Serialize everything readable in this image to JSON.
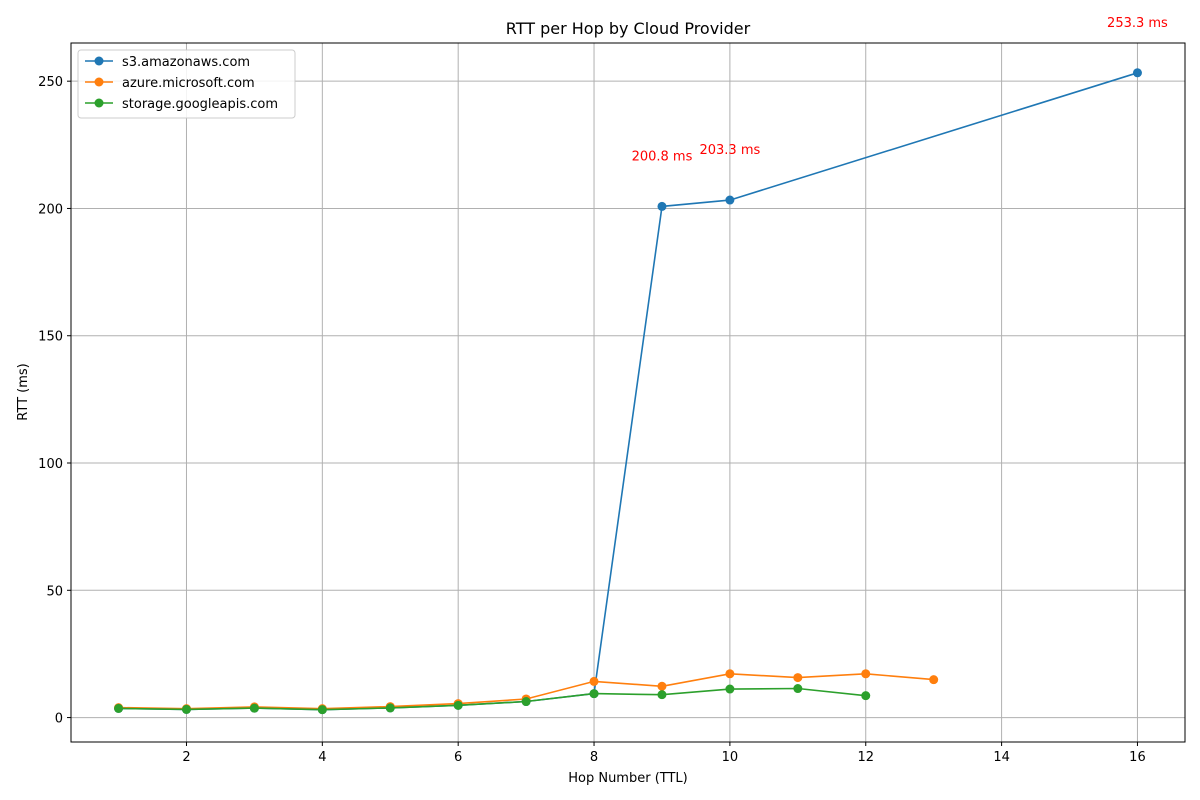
{
  "chart_data": {
    "type": "line",
    "title": "RTT per Hop by Cloud Provider",
    "xlabel": "Hop Number (TTL)",
    "ylabel": "RTT (ms)",
    "xlim": [
      0.3,
      16.7
    ],
    "ylim": [
      -9.6,
      265
    ],
    "xticks": [
      2,
      4,
      6,
      8,
      10,
      12,
      14,
      16
    ],
    "yticks": [
      0,
      50,
      100,
      150,
      200,
      250
    ],
    "grid": true,
    "legend_position": "top-left",
    "series": [
      {
        "name": "s3.amazonaws.com",
        "color": "#1f77b4",
        "x": [
          1,
          2,
          3,
          4,
          5,
          6,
          7,
          8,
          9,
          10,
          16
        ],
        "y": [
          3.6,
          3.2,
          3.7,
          3.1,
          3.8,
          4.8,
          6.3,
          9.4,
          200.8,
          203.3,
          253.3
        ]
      },
      {
        "name": "azure.microsoft.com",
        "color": "#ff7f0e",
        "x": [
          1,
          2,
          3,
          4,
          5,
          6,
          7,
          8,
          9,
          10,
          11,
          12,
          13
        ],
        "y": [
          3.9,
          3.5,
          4.2,
          3.5,
          4.3,
          5.5,
          7.3,
          14.2,
          12.3,
          17.2,
          15.7,
          17.2,
          14.9
        ]
      },
      {
        "name": "storage.googleapis.com",
        "color": "#2ca02c",
        "x": [
          1,
          2,
          3,
          4,
          5,
          6,
          7,
          8,
          9,
          10,
          11,
          12
        ],
        "y": [
          3.6,
          3.2,
          3.7,
          3.1,
          3.8,
          4.8,
          6.3,
          9.4,
          9.0,
          11.2,
          11.4,
          8.6
        ]
      }
    ],
    "annotations": [
      {
        "text": "200.8 ms",
        "x": 9,
        "y": 200.8,
        "color": "#ff0000"
      },
      {
        "text": "203.3 ms",
        "x": 10,
        "y": 203.3,
        "color": "#ff0000"
      },
      {
        "text": "253.3 ms",
        "x": 16,
        "y": 253.3,
        "color": "#ff0000"
      }
    ]
  }
}
